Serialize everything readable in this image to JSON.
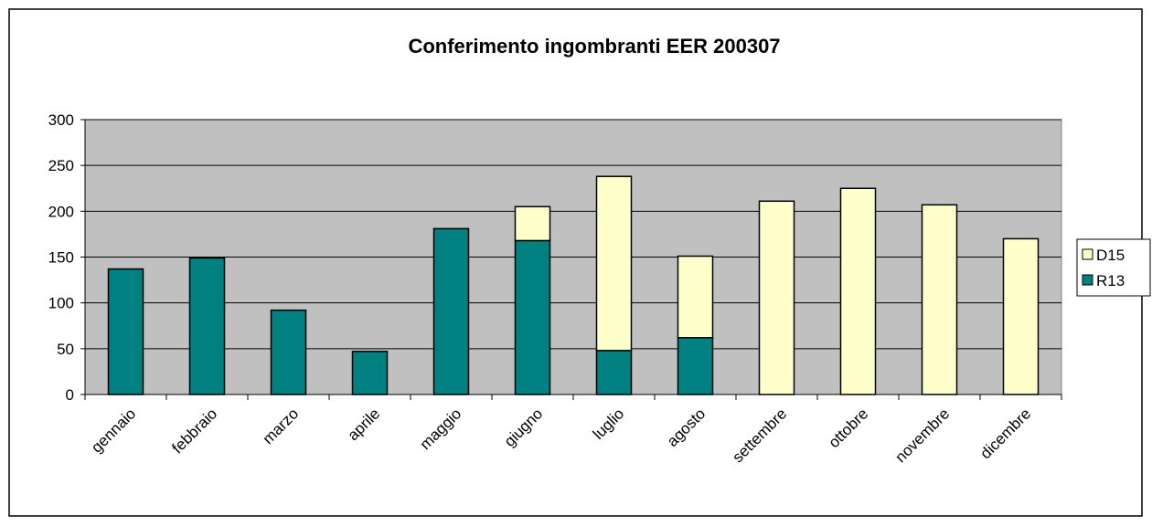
{
  "chart_data": {
    "type": "stacked_bar",
    "title": "Conferimento ingombranti EER 200307",
    "categories": [
      "gennaio",
      "febbraio",
      "marzo",
      "aprile",
      "maggio",
      "giugno",
      "luglio",
      "agosto",
      "settembre",
      "ottobre",
      "novembre",
      "dicembre"
    ],
    "series": [
      {
        "name": "R13",
        "color": "#008080",
        "values": [
          137,
          149,
          92,
          47,
          181,
          168,
          48,
          62,
          null,
          null,
          null,
          null
        ]
      },
      {
        "name": "D15",
        "color": "#ffffcc",
        "values": [
          null,
          null,
          null,
          null,
          null,
          37,
          190,
          89,
          211,
          225,
          207,
          170
        ]
      }
    ],
    "ylim": [
      0,
      300
    ],
    "yticks": [
      0,
      50,
      100,
      150,
      200,
      250,
      300
    ],
    "grid": true,
    "legend": "right"
  }
}
